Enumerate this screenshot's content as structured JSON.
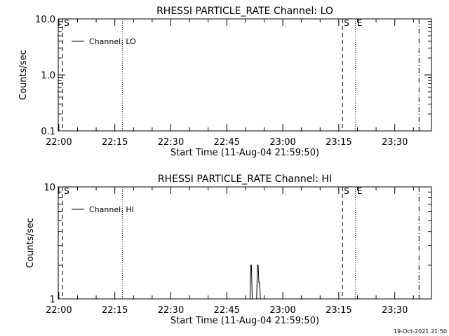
{
  "chart_data": [
    {
      "type": "line",
      "title": "RHESSI PARTICLE_RATE Channel: LO",
      "xlabel": "Start Time (11-Aug-04 21:59:50)",
      "ylabel": "Counts/sec",
      "y_scale": "log",
      "ylim": [
        0.1,
        10.0
      ],
      "yticks": [
        "0.1",
        "1.0",
        "10.0"
      ],
      "xlim": [
        "21:59:50",
        "23:39:50"
      ],
      "xticks": [
        "22:00",
        "22:15",
        "22:30",
        "22:45",
        "23:00",
        "23:15",
        "23:30"
      ],
      "legend": {
        "placement": "top-left",
        "label": "Channel: LO"
      },
      "series": [
        {
          "name": "Channel: LO",
          "x": [],
          "y": []
        }
      ],
      "markers": [
        {
          "time": "22:01:00",
          "label": "S",
          "style": "dashed"
        },
        {
          "time": "22:17:00",
          "label": "",
          "style": "dotted"
        },
        {
          "time": "23:16:00",
          "label": "S",
          "style": "dashed"
        },
        {
          "time": "23:19:30",
          "label": "E",
          "style": "dotted"
        },
        {
          "time": "23:36:30",
          "label": "",
          "style": "dashdot"
        }
      ]
    },
    {
      "type": "line",
      "title": "RHESSI PARTICLE_RATE Channel: HI",
      "xlabel": "Start Time (11-Aug-04 21:59:50)",
      "ylabel": "Counts/sec",
      "y_scale": "log",
      "ylim": [
        1,
        10
      ],
      "yticks": [
        "1",
        "10"
      ],
      "xlim": [
        "21:59:50",
        "23:39:50"
      ],
      "xticks": [
        "22:00",
        "22:15",
        "22:30",
        "22:45",
        "23:00",
        "23:15",
        "23:30"
      ],
      "legend": {
        "placement": "top-left",
        "label": "Channel: HI"
      },
      "series": [
        {
          "name": "Channel: HI",
          "x": [
            "22:51:00",
            "22:51:12",
            "22:51:24",
            "22:51:36",
            "22:51:48",
            "22:52:00",
            "22:52:12",
            "22:53:00",
            "22:53:12",
            "22:53:24",
            "22:53:36",
            "22:53:48",
            "22:54:00"
          ],
          "y": [
            1,
            1,
            2,
            2,
            1,
            1,
            1,
            1,
            2,
            2,
            1.4,
            1.4,
            1
          ]
        }
      ],
      "markers": [
        {
          "time": "22:01:00",
          "label": "S",
          "style": "dashed"
        },
        {
          "time": "22:17:00",
          "label": "",
          "style": "dotted"
        },
        {
          "time": "23:16:00",
          "label": "S",
          "style": "dashed"
        },
        {
          "time": "23:19:30",
          "label": "E",
          "style": "dotted"
        },
        {
          "time": "23:36:30",
          "label": "",
          "style": "dashdot"
        }
      ]
    }
  ],
  "footer": {
    "timestamp": "19-Oct-2021 21:50"
  }
}
